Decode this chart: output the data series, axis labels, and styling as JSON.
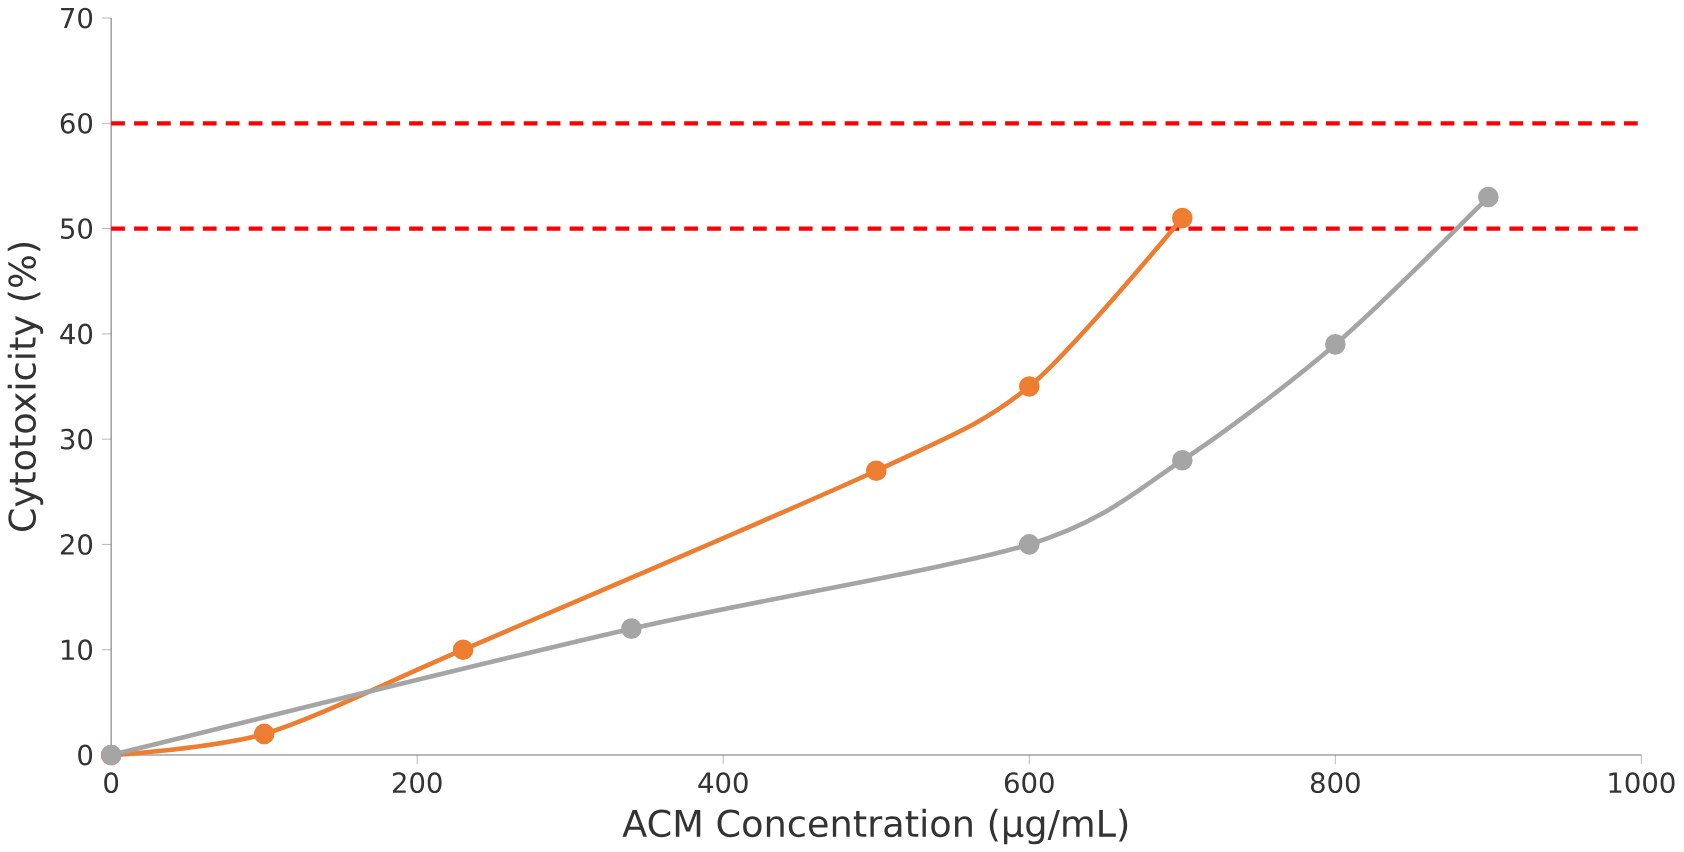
{
  "chart_data": {
    "type": "line",
    "xlabel": "ACM Concentration (μg/mL)",
    "ylabel": "Cytotoxicity (%)",
    "xlim": [
      0,
      1000
    ],
    "xticks": [
      0,
      200,
      400,
      600,
      800,
      1000
    ],
    "ylim": [
      0,
      70
    ],
    "yticks": [
      0,
      10,
      20,
      30,
      40,
      50,
      60,
      70
    ],
    "grid": false,
    "marker": "circle",
    "line_style": "solid",
    "series": [
      {
        "color": "#ed7d31",
        "x": [
          0,
          100,
          230,
          500,
          600,
          700
        ],
        "values": [
          0,
          2,
          10,
          27,
          35,
          51
        ]
      },
      {
        "color": "#a5a5a5",
        "x": [
          0,
          340,
          600,
          700,
          800,
          900
        ],
        "values": [
          0,
          12,
          20,
          28,
          39,
          53
        ]
      }
    ],
    "ref_lines": [
      {
        "axis": "y",
        "value": 60,
        "color": "#ff0000",
        "line_style": "dashed"
      },
      {
        "axis": "y",
        "value": 50,
        "color": "#ff0000",
        "line_style": "dashed"
      }
    ]
  }
}
